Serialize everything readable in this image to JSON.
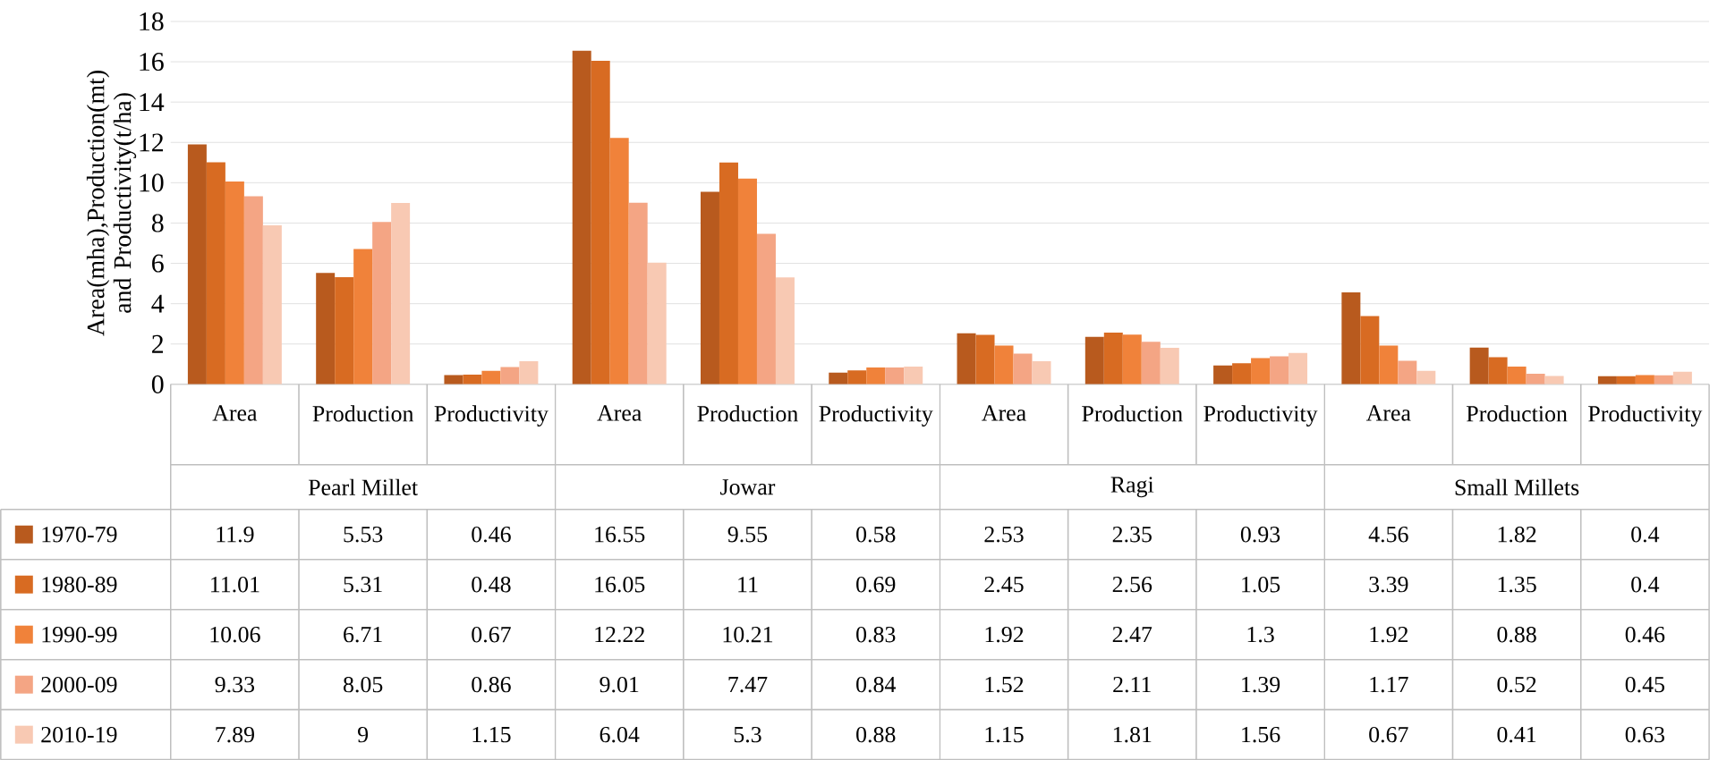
{
  "chart_data": {
    "type": "bar",
    "ylabel": "Area(mha),Production(mt) and Productivity(t/ha)",
    "categories": [
      "Area",
      "Production",
      "Productivity",
      "Area",
      "Production",
      "Productivity",
      "Area",
      "Production",
      "Productivity",
      "Area",
      "Production",
      "Productivity"
    ],
    "annotations": [
      "Pearl Millet",
      "Jowar",
      "Ragi",
      "Small Millets"
    ],
    "series": [
      {
        "name": "1970-79",
        "color": "#b85a1e",
        "values": [
          11.9,
          5.53,
          0.46,
          16.55,
          9.55,
          0.58,
          2.53,
          2.35,
          0.93,
          4.56,
          1.82,
          0.4
        ]
      },
      {
        "name": "1980-89",
        "color": "#d86b22",
        "values": [
          11.01,
          5.31,
          0.48,
          16.05,
          11,
          0.69,
          2.45,
          2.56,
          1.05,
          3.39,
          1.35,
          0.4
        ]
      },
      {
        "name": "1990-99",
        "color": "#f0823a",
        "values": [
          10.06,
          6.71,
          0.67,
          12.22,
          10.21,
          0.83,
          1.92,
          2.47,
          1.3,
          1.92,
          0.88,
          0.46
        ]
      },
      {
        "name": "2000-09",
        "color": "#f4a584",
        "values": [
          9.33,
          8.05,
          0.86,
          9.01,
          7.47,
          0.84,
          1.52,
          2.11,
          1.39,
          1.17,
          0.52,
          0.45
        ]
      },
      {
        "name": "2010-19",
        "color": "#f8c9b3",
        "values": [
          7.89,
          9,
          1.15,
          6.04,
          5.3,
          0.88,
          1.15,
          1.81,
          1.56,
          0.67,
          0.41,
          0.63
        ]
      }
    ],
    "ylim": [
      0,
      18
    ],
    "yticks": [
      0,
      2,
      4,
      6,
      8,
      10,
      12,
      14,
      16,
      18
    ],
    "grid": "y",
    "legend": "bottom",
    "data_labels": true
  }
}
